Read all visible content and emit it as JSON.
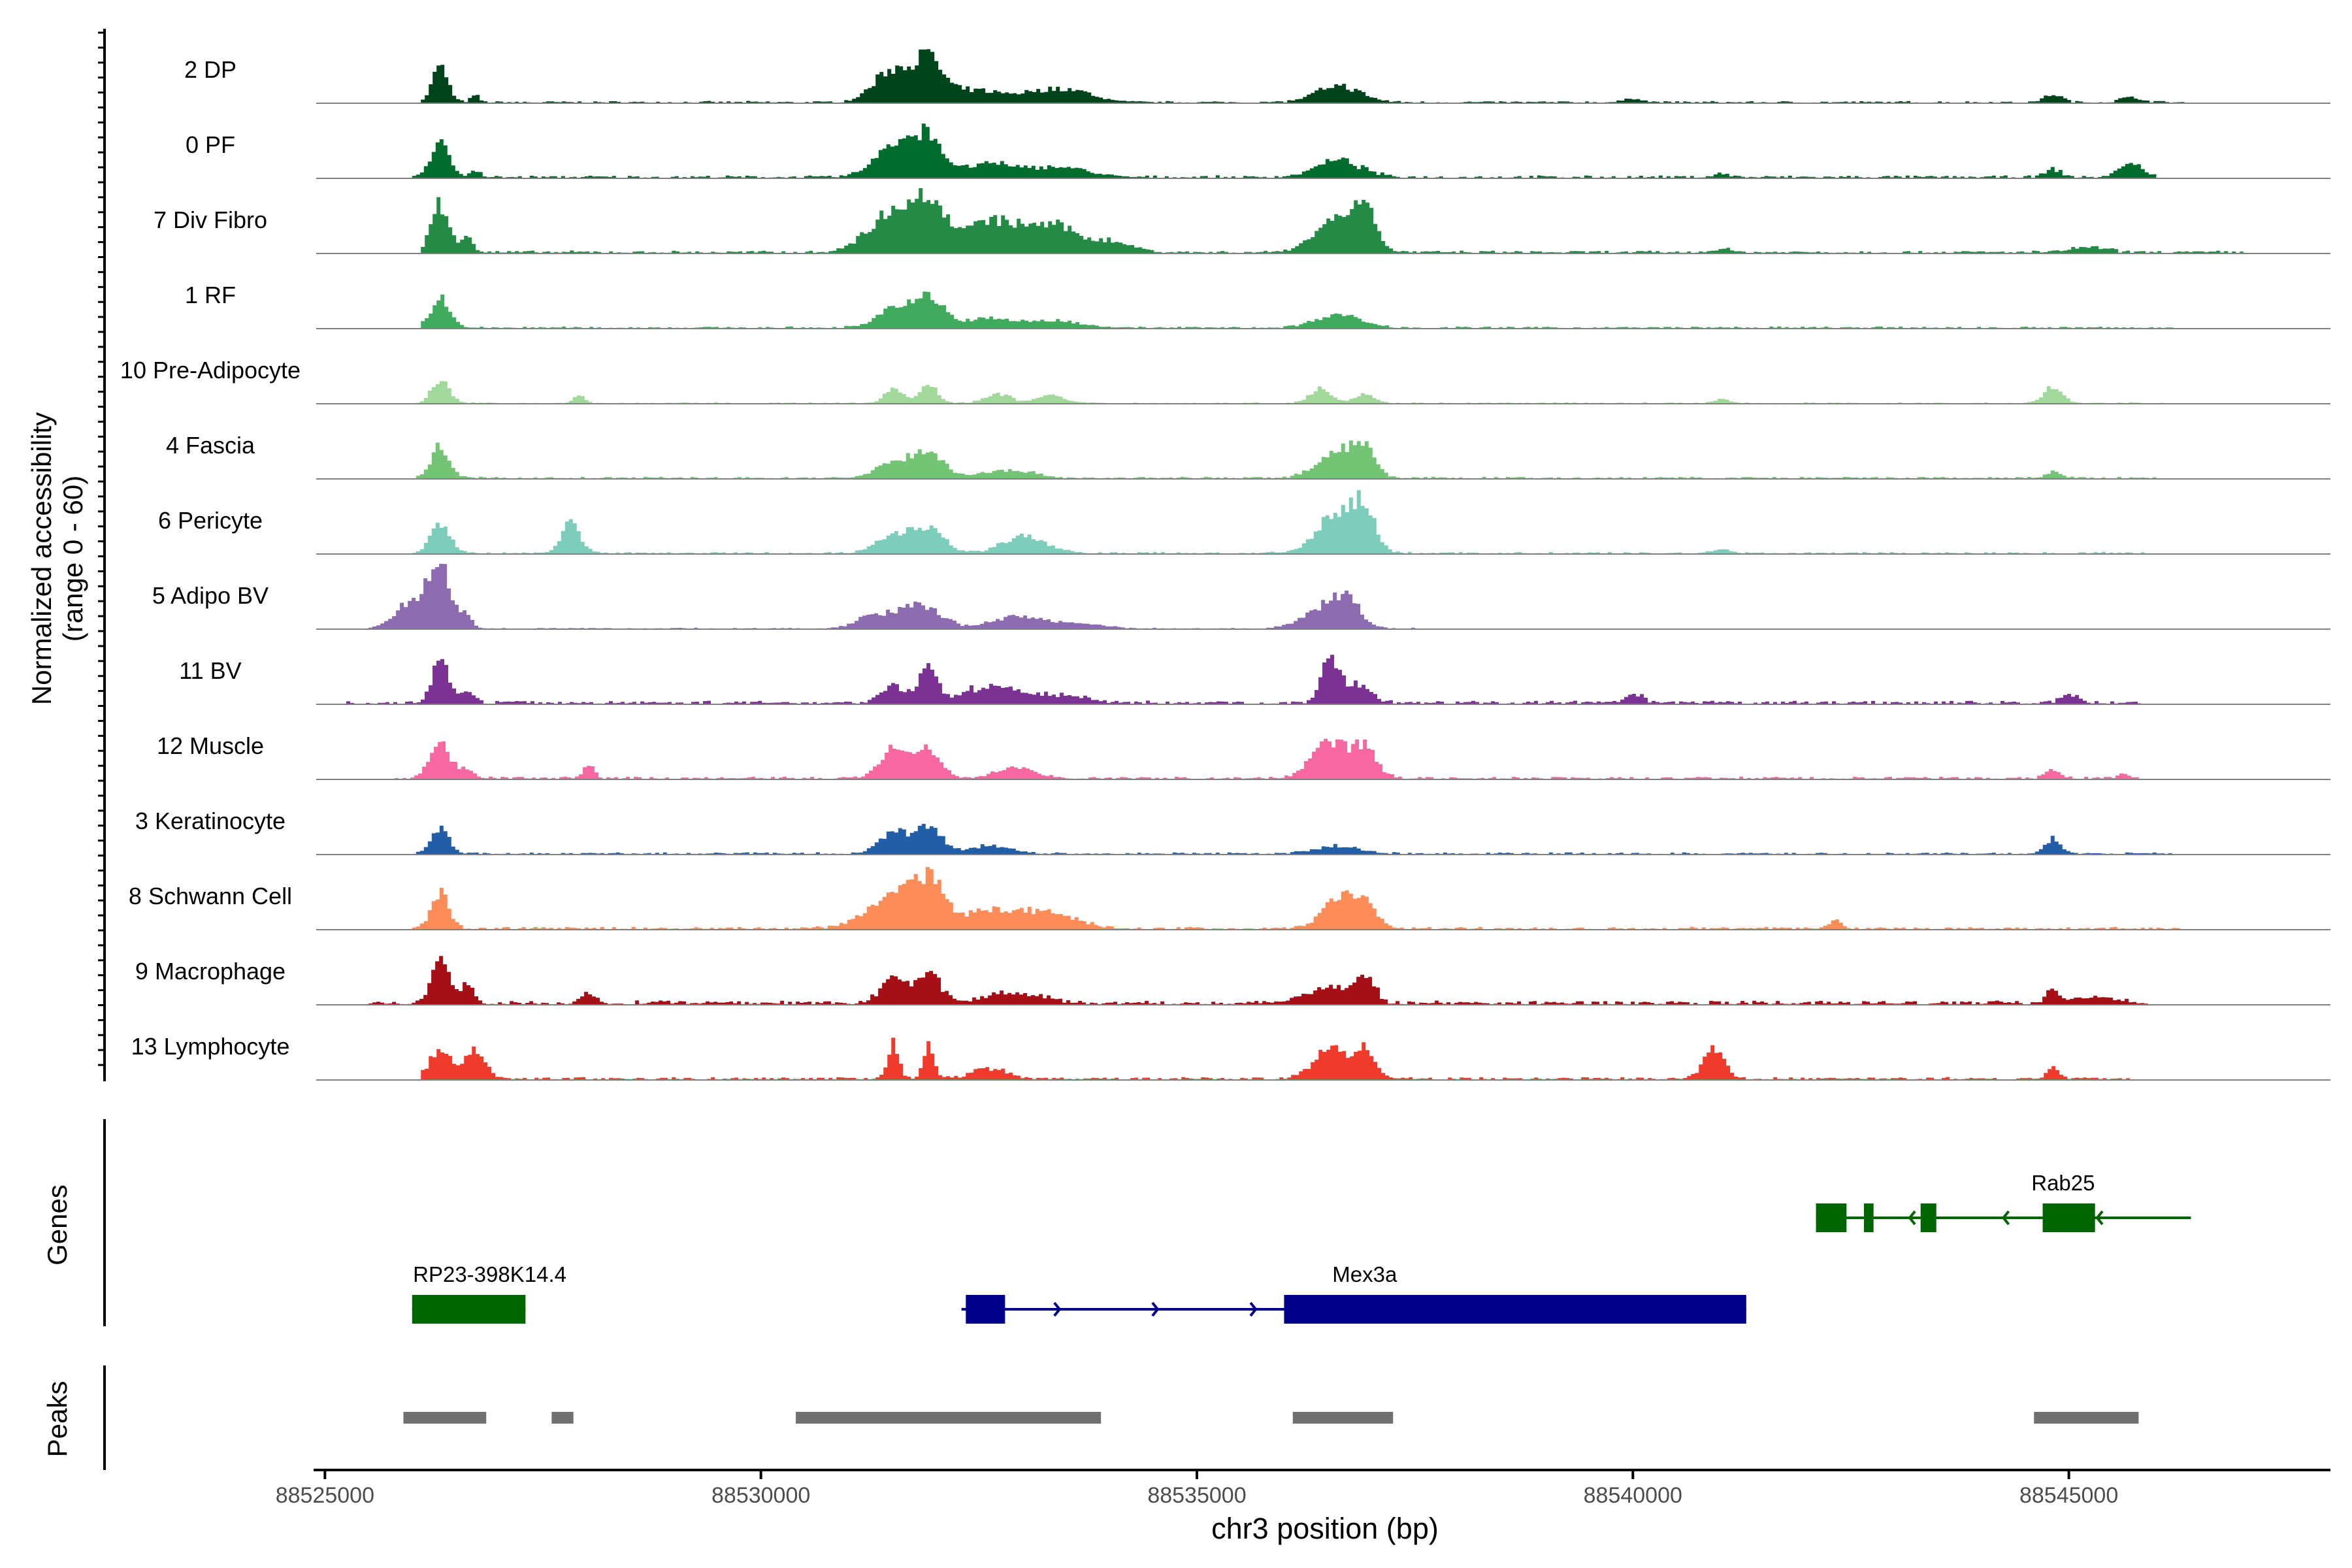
{
  "chart_data": {
    "type": "area",
    "title": "",
    "xlabel": "chr3 position (bp)",
    "ylabel_lines": [
      "Normalized accessibility",
      "(range 0 - 60)"
    ],
    "xlim": [
      88524900,
      88548000
    ],
    "ylim": [
      0,
      60
    ],
    "x_ticks": [
      88525000,
      88530000,
      88535000,
      88540000,
      88545000
    ],
    "x_tick_labels": [
      "88525000",
      "88530000",
      "88535000",
      "88540000",
      "88545000"
    ],
    "peak_centers": [
      88526300,
      88531500,
      88531900,
      88536600,
      88544800
    ],
    "tracks": [
      {
        "name": "2 DP",
        "color": "#00441B",
        "peaks": [
          [
            88526300,
            0.56,
            90
          ],
          [
            88526700,
            0.1,
            50
          ],
          [
            88531500,
            0.5,
            220
          ],
          [
            88531900,
            0.58,
            160
          ],
          [
            88532400,
            0.18,
            300
          ],
          [
            88533200,
            0.15,
            300
          ],
          [
            88533600,
            0.12,
            250
          ],
          [
            88536600,
            0.25,
            250
          ],
          [
            88540000,
            0.06,
            100
          ],
          [
            88544800,
            0.12,
            100
          ],
          [
            88545700,
            0.08,
            120
          ]
        ],
        "base": 0.03,
        "start": 88526100,
        "end": 88546300
      },
      {
        "name": "0 PF",
        "color": "#006D2C",
        "peaks": [
          [
            88526300,
            0.52,
            110
          ],
          [
            88526700,
            0.1,
            60
          ],
          [
            88531500,
            0.48,
            220
          ],
          [
            88531900,
            0.6,
            160
          ],
          [
            88532600,
            0.2,
            300
          ],
          [
            88533400,
            0.16,
            300
          ],
          [
            88536600,
            0.25,
            260
          ],
          [
            88541000,
            0.05,
            100
          ],
          [
            88544800,
            0.12,
            90
          ],
          [
            88545700,
            0.2,
            140
          ]
        ],
        "base": 0.04,
        "start": 88526000,
        "end": 88546000
      },
      {
        "name": "7 Div Fibro",
        "color": "#238B45",
        "peaks": [
          [
            88526300,
            0.72,
            100
          ],
          [
            88526600,
            0.25,
            70
          ],
          [
            88531500,
            0.6,
            280
          ],
          [
            88531900,
            0.62,
            200
          ],
          [
            88532600,
            0.45,
            300
          ],
          [
            88533300,
            0.4,
            300
          ],
          [
            88534000,
            0.15,
            250
          ],
          [
            88536600,
            0.52,
            260
          ],
          [
            88536900,
            0.5,
            120
          ],
          [
            88541000,
            0.06,
            100
          ],
          [
            88545200,
            0.08,
            200
          ]
        ],
        "base": 0.04,
        "start": 88526100,
        "end": 88547000
      },
      {
        "name": "1 RF",
        "color": "#41AB5D",
        "peaks": [
          [
            88526300,
            0.45,
            110
          ],
          [
            88531500,
            0.3,
            200
          ],
          [
            88531900,
            0.42,
            180
          ],
          [
            88532600,
            0.14,
            300
          ],
          [
            88533400,
            0.1,
            300
          ],
          [
            88536600,
            0.2,
            260
          ]
        ],
        "base": 0.03,
        "start": 88526100,
        "end": 88546200
      },
      {
        "name": "10 Pre-Adipocyte",
        "color": "#A1D99B",
        "peaks": [
          [
            88526300,
            0.34,
            100
          ],
          [
            88527900,
            0.14,
            60
          ],
          [
            88531500,
            0.26,
            100
          ],
          [
            88531900,
            0.3,
            100
          ],
          [
            88532700,
            0.14,
            150
          ],
          [
            88533300,
            0.12,
            150
          ],
          [
            88536400,
            0.24,
            120
          ],
          [
            88536900,
            0.14,
            120
          ],
          [
            88541000,
            0.06,
            80
          ],
          [
            88544800,
            0.26,
            100
          ]
        ],
        "base": 0.02,
        "start": 88526000,
        "end": 88546200
      },
      {
        "name": "4 Fascia",
        "color": "#74C476",
        "peaks": [
          [
            88526300,
            0.5,
            100
          ],
          [
            88531500,
            0.22,
            200
          ],
          [
            88531900,
            0.38,
            180
          ],
          [
            88532800,
            0.12,
            300
          ],
          [
            88536600,
            0.42,
            230
          ],
          [
            88536900,
            0.38,
            120
          ],
          [
            88544800,
            0.1,
            80
          ]
        ],
        "base": 0.03,
        "start": 88526000,
        "end": 88546000
      },
      {
        "name": "6 Pericyte",
        "color": "#7CCDBB",
        "peaks": [
          [
            88526300,
            0.44,
            110
          ],
          [
            88527800,
            0.45,
            110
          ],
          [
            88531500,
            0.26,
            200
          ],
          [
            88531900,
            0.38,
            180
          ],
          [
            88533000,
            0.25,
            250
          ],
          [
            88536600,
            0.62,
            230
          ],
          [
            88536900,
            0.55,
            120
          ],
          [
            88541000,
            0.06,
            100
          ]
        ],
        "base": 0.03,
        "start": 88526000,
        "end": 88546000
      },
      {
        "name": "5 Adipo BV",
        "color": "#8C6BB1",
        "peaks": [
          [
            88526000,
            0.42,
            200
          ],
          [
            88526300,
            0.92,
            120
          ],
          [
            88526600,
            0.2,
            70
          ],
          [
            88531300,
            0.22,
            200
          ],
          [
            88531700,
            0.32,
            150
          ],
          [
            88532000,
            0.2,
            150
          ],
          [
            88532900,
            0.18,
            300
          ],
          [
            88533600,
            0.08,
            300
          ],
          [
            88536400,
            0.28,
            230
          ],
          [
            88536700,
            0.38,
            160
          ]
        ],
        "base": 0.02,
        "start": 88525500,
        "end": 88537500
      },
      {
        "name": "11 BV",
        "color": "#7B3294",
        "peaks": [
          [
            88526300,
            0.7,
            90
          ],
          [
            88526600,
            0.18,
            80
          ],
          [
            88531900,
            0.65,
            90
          ],
          [
            88531500,
            0.26,
            150
          ],
          [
            88532600,
            0.25,
            300
          ],
          [
            88533400,
            0.12,
            300
          ],
          [
            88536500,
            0.6,
            100
          ],
          [
            88536800,
            0.3,
            160
          ],
          [
            88540000,
            0.12,
            100
          ],
          [
            88545000,
            0.14,
            100
          ]
        ],
        "base": 0.05,
        "start": 88525200,
        "end": 88545800
      },
      {
        "name": "12 Muscle",
        "color": "#F768A1",
        "peaks": [
          [
            88526300,
            0.6,
            110
          ],
          [
            88526600,
            0.15,
            70
          ],
          [
            88528000,
            0.2,
            60
          ],
          [
            88531500,
            0.48,
            150
          ],
          [
            88531900,
            0.45,
            150
          ],
          [
            88532900,
            0.18,
            200
          ],
          [
            88536500,
            0.55,
            200
          ],
          [
            88536900,
            0.45,
            140
          ],
          [
            88544800,
            0.15,
            80
          ],
          [
            88545600,
            0.08,
            60
          ]
        ],
        "base": 0.04,
        "start": 88525800,
        "end": 88545800
      },
      {
        "name": "3 Keratinocyte",
        "color": "#225EA8",
        "peaks": [
          [
            88526300,
            0.38,
            100
          ],
          [
            88531500,
            0.35,
            150
          ],
          [
            88531900,
            0.4,
            150
          ],
          [
            88532600,
            0.12,
            250
          ],
          [
            88536600,
            0.12,
            250
          ],
          [
            88544800,
            0.22,
            90
          ]
        ],
        "base": 0.03,
        "start": 88526000,
        "end": 88546200
      },
      {
        "name": "8 Schwann Cell",
        "color": "#FC8D59",
        "peaks": [
          [
            88526300,
            0.55,
            100
          ],
          [
            88531500,
            0.45,
            300
          ],
          [
            88531900,
            0.62,
            180
          ],
          [
            88532600,
            0.28,
            300
          ],
          [
            88533300,
            0.24,
            300
          ],
          [
            88536600,
            0.5,
            180
          ],
          [
            88536900,
            0.34,
            140
          ],
          [
            88542300,
            0.12,
            80
          ]
        ],
        "base": 0.04,
        "start": 88526000,
        "end": 88546300
      },
      {
        "name": "9 Macrophage",
        "color": "#A50F15",
        "peaks": [
          [
            88526300,
            0.75,
            90
          ],
          [
            88526600,
            0.28,
            80
          ],
          [
            88528000,
            0.14,
            80
          ],
          [
            88531500,
            0.35,
            150
          ],
          [
            88531900,
            0.42,
            150
          ],
          [
            88532900,
            0.18,
            300
          ],
          [
            88536500,
            0.26,
            250
          ],
          [
            88536900,
            0.42,
            110
          ],
          [
            88544800,
            0.2,
            80
          ],
          [
            88545300,
            0.1,
            250
          ]
        ],
        "base": 0.06,
        "start": 88525500,
        "end": 88545900
      },
      {
        "name": "13 Lymphocyte",
        "color": "#EF3B2C",
        "peaks": [
          [
            88526300,
            0.45,
            120
          ],
          [
            88526700,
            0.45,
            120
          ],
          [
            88531500,
            0.55,
            60
          ],
          [
            88531900,
            0.5,
            60
          ],
          [
            88532600,
            0.16,
            200
          ],
          [
            88536500,
            0.48,
            180
          ],
          [
            88536900,
            0.42,
            120
          ],
          [
            88540900,
            0.45,
            120
          ],
          [
            88544800,
            0.18,
            70
          ]
        ],
        "base": 0.04,
        "start": 88526100,
        "end": 88545700
      }
    ],
    "genes": {
      "label": "Genes",
      "items": [
        {
          "name": "RP23-398K14.4",
          "strand": "+",
          "start": 88526000,
          "end": 88527300,
          "exons": [
            [
              88526000,
              88527300
            ]
          ],
          "color": "#006400",
          "row": 2
        },
        {
          "name": "Mex3a",
          "strand": "+",
          "start": 88532300,
          "end": 88541300,
          "exons": [
            [
              88532350,
              88532800
            ],
            [
              88536000,
              88541300
            ]
          ],
          "color": "#00008B",
          "row": 2
        },
        {
          "name": "Rab25",
          "strand": "-",
          "start": 88542100,
          "end": 88546400,
          "exons": [
            [
              88542100,
              88542450
            ],
            [
              88542650,
              88542760
            ],
            [
              88543300,
              88543480
            ],
            [
              88544700,
              88545300
            ]
          ],
          "color": "#006400",
          "row": 1
        }
      ]
    },
    "peaks_track": {
      "label": "Peaks",
      "color": "#707070",
      "intervals": [
        [
          88525900,
          88526850
        ],
        [
          88527600,
          88527850
        ],
        [
          88530400,
          88533900
        ],
        [
          88536100,
          88537250
        ],
        [
          88544600,
          88545800
        ]
      ]
    }
  }
}
